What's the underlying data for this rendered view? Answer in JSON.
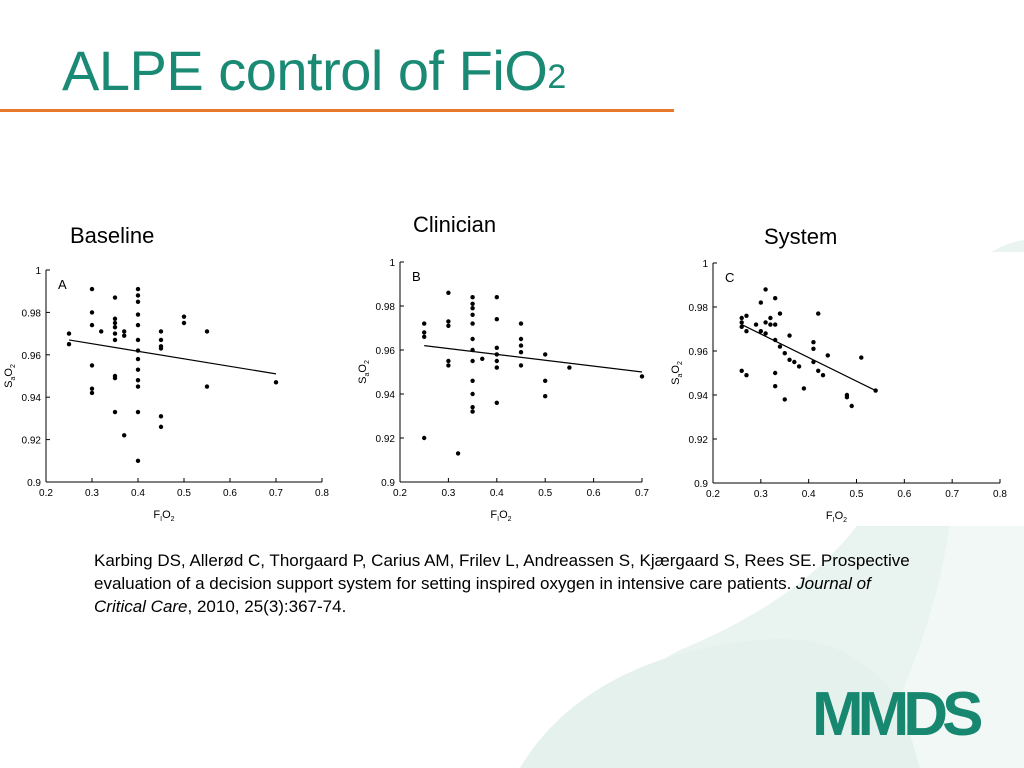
{
  "slide": {
    "title_main": "ALPE control of FiO",
    "title_sub": "2",
    "colors": {
      "title": "#1a8a74",
      "rule": "#e8782a",
      "logo": "#17876f",
      "swoosh": "#e7f3ef"
    }
  },
  "labels": {
    "baseline": "Baseline",
    "clinician": "Clinician",
    "system": "System"
  },
  "reference": {
    "text1": "Karbing DS, Allerød C, Thorgaard P, Carius AM, Frilev L, Andreassen S, Kjærgaard S, Rees SE. Prospective evaluation of a decision support system for setting inspired oxygen in intensive care patients. ",
    "journal": "Journal of Critical Care",
    "text2": ", 2010, 25(3):367-74."
  },
  "logo": {
    "text": "MMDS"
  },
  "chart_data": [
    {
      "type": "scatter",
      "panel_label": "A",
      "xlabel": "FIO2",
      "ylabel": "SaO2",
      "xlim": [
        0.2,
        0.8
      ],
      "ylim": [
        0.9,
        1.0
      ],
      "xticks": [
        "0.2",
        "0.3",
        "0.4",
        "0.5",
        "0.6",
        "0.7",
        "0.8"
      ],
      "yticks": [
        "0.9",
        "0.92",
        "0.94",
        "0.96",
        "0.98",
        "1"
      ],
      "points": [
        [
          0.25,
          0.97
        ],
        [
          0.25,
          0.965
        ],
        [
          0.3,
          0.991
        ],
        [
          0.3,
          0.98
        ],
        [
          0.3,
          0.974
        ],
        [
          0.3,
          0.955
        ],
        [
          0.3,
          0.944
        ],
        [
          0.3,
          0.942
        ],
        [
          0.32,
          0.971
        ],
        [
          0.35,
          0.987
        ],
        [
          0.35,
          0.977
        ],
        [
          0.35,
          0.975
        ],
        [
          0.35,
          0.973
        ],
        [
          0.35,
          0.97
        ],
        [
          0.35,
          0.967
        ],
        [
          0.35,
          0.95
        ],
        [
          0.35,
          0.949
        ],
        [
          0.35,
          0.933
        ],
        [
          0.37,
          0.971
        ],
        [
          0.37,
          0.969
        ],
        [
          0.37,
          0.922
        ],
        [
          0.4,
          0.991
        ],
        [
          0.4,
          0.988
        ],
        [
          0.4,
          0.985
        ],
        [
          0.4,
          0.979
        ],
        [
          0.4,
          0.974
        ],
        [
          0.4,
          0.967
        ],
        [
          0.4,
          0.962
        ],
        [
          0.4,
          0.958
        ],
        [
          0.4,
          0.953
        ],
        [
          0.4,
          0.948
        ],
        [
          0.4,
          0.945
        ],
        [
          0.4,
          0.933
        ],
        [
          0.4,
          0.91
        ],
        [
          0.45,
          0.971
        ],
        [
          0.45,
          0.967
        ],
        [
          0.45,
          0.964
        ],
        [
          0.45,
          0.963
        ],
        [
          0.45,
          0.931
        ],
        [
          0.45,
          0.926
        ],
        [
          0.5,
          0.978
        ],
        [
          0.5,
          0.975
        ],
        [
          0.55,
          0.971
        ],
        [
          0.55,
          0.945
        ],
        [
          0.7,
          0.947
        ]
      ],
      "fit_line": [
        [
          0.25,
          0.967
        ],
        [
          0.7,
          0.951
        ]
      ]
    },
    {
      "type": "scatter",
      "panel_label": "B",
      "xlabel": "FIO2",
      "ylabel": "SaO2",
      "xlim": [
        0.2,
        0.7
      ],
      "ylim": [
        0.9,
        1.0
      ],
      "xticks": [
        "0.2",
        "0.3",
        "0.4",
        "0.5",
        "0.6",
        "0.7"
      ],
      "yticks": [
        "0.9",
        "0.92",
        "0.94",
        "0.96",
        "0.98",
        "1"
      ],
      "points": [
        [
          0.25,
          0.972
        ],
        [
          0.25,
          0.968
        ],
        [
          0.25,
          0.966
        ],
        [
          0.25,
          0.92
        ],
        [
          0.3,
          0.986
        ],
        [
          0.3,
          0.973
        ],
        [
          0.3,
          0.971
        ],
        [
          0.3,
          0.955
        ],
        [
          0.3,
          0.953
        ],
        [
          0.32,
          0.913
        ],
        [
          0.35,
          0.984
        ],
        [
          0.35,
          0.981
        ],
        [
          0.35,
          0.979
        ],
        [
          0.35,
          0.976
        ],
        [
          0.35,
          0.972
        ],
        [
          0.35,
          0.965
        ],
        [
          0.35,
          0.96
        ],
        [
          0.35,
          0.955
        ],
        [
          0.35,
          0.946
        ],
        [
          0.35,
          0.94
        ],
        [
          0.35,
          0.934
        ],
        [
          0.35,
          0.932
        ],
        [
          0.37,
          0.956
        ],
        [
          0.4,
          0.984
        ],
        [
          0.4,
          0.974
        ],
        [
          0.4,
          0.961
        ],
        [
          0.4,
          0.958
        ],
        [
          0.4,
          0.955
        ],
        [
          0.4,
          0.952
        ],
        [
          0.4,
          0.936
        ],
        [
          0.45,
          0.972
        ],
        [
          0.45,
          0.965
        ],
        [
          0.45,
          0.962
        ],
        [
          0.45,
          0.959
        ],
        [
          0.45,
          0.953
        ],
        [
          0.5,
          0.958
        ],
        [
          0.5,
          0.946
        ],
        [
          0.5,
          0.939
        ],
        [
          0.55,
          0.952
        ],
        [
          0.7,
          0.948
        ]
      ],
      "fit_line": [
        [
          0.25,
          0.962
        ],
        [
          0.7,
          0.95
        ]
      ]
    },
    {
      "type": "scatter",
      "panel_label": "C",
      "xlabel": "FIO2",
      "ylabel": "SaO2",
      "xlim": [
        0.2,
        0.8
      ],
      "ylim": [
        0.9,
        1.0
      ],
      "xticks": [
        "0.2",
        "0.3",
        "0.4",
        "0.5",
        "0.6",
        "0.7",
        "0.8"
      ],
      "yticks": [
        "0.9",
        "0.92",
        "0.94",
        "0.96",
        "0.98",
        "1"
      ],
      "points": [
        [
          0.26,
          0.975
        ],
        [
          0.26,
          0.973
        ],
        [
          0.26,
          0.971
        ],
        [
          0.26,
          0.951
        ],
        [
          0.27,
          0.976
        ],
        [
          0.27,
          0.969
        ],
        [
          0.27,
          0.949
        ],
        [
          0.29,
          0.972
        ],
        [
          0.3,
          0.982
        ],
        [
          0.3,
          0.969
        ],
        [
          0.31,
          0.988
        ],
        [
          0.31,
          0.973
        ],
        [
          0.31,
          0.968
        ],
        [
          0.32,
          0.975
        ],
        [
          0.32,
          0.972
        ],
        [
          0.33,
          0.984
        ],
        [
          0.33,
          0.972
        ],
        [
          0.33,
          0.965
        ],
        [
          0.33,
          0.944
        ],
        [
          0.33,
          0.95
        ],
        [
          0.34,
          0.977
        ],
        [
          0.34,
          0.962
        ],
        [
          0.35,
          0.959
        ],
        [
          0.35,
          0.938
        ],
        [
          0.36,
          0.967
        ],
        [
          0.36,
          0.956
        ],
        [
          0.37,
          0.955
        ],
        [
          0.38,
          0.953
        ],
        [
          0.39,
          0.943
        ],
        [
          0.41,
          0.964
        ],
        [
          0.41,
          0.961
        ],
        [
          0.41,
          0.955
        ],
        [
          0.42,
          0.977
        ],
        [
          0.42,
          0.951
        ],
        [
          0.43,
          0.949
        ],
        [
          0.44,
          0.958
        ],
        [
          0.48,
          0.939
        ],
        [
          0.48,
          0.94
        ],
        [
          0.49,
          0.935
        ],
        [
          0.51,
          0.957
        ],
        [
          0.54,
          0.942
        ]
      ],
      "fit_line": [
        [
          0.26,
          0.972
        ],
        [
          0.54,
          0.942
        ]
      ]
    }
  ]
}
